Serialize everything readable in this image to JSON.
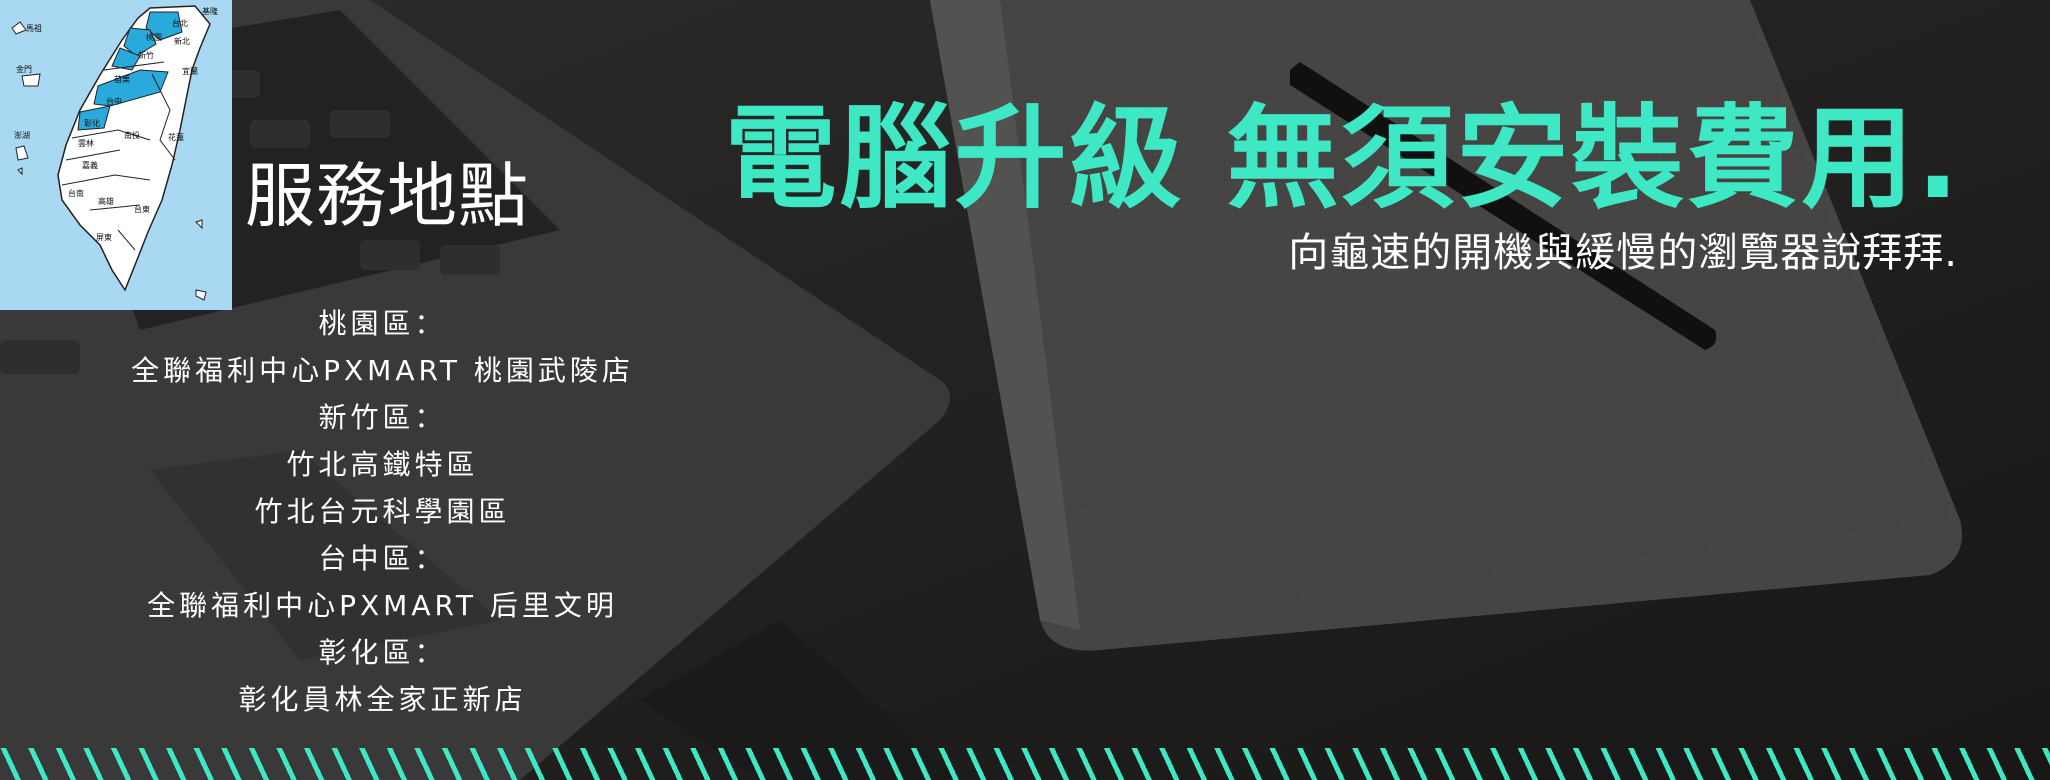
{
  "hero": {
    "headline": "電腦升級 無須安裝費用.",
    "subheadline": "向龜速的開機與緩慢的瀏覽器說拜拜."
  },
  "service_area": {
    "title": "服務地點",
    "lines": [
      "桃園區：",
      "全聯福利中心PXMART 桃園武陵店",
      "新竹區：",
      "竹北高鐵特區",
      "竹北台元科學園區",
      "台中區：",
      "全聯福利中心PXMART 后里文明",
      "彰化區：",
      "彰化員林全家正新店"
    ]
  },
  "map": {
    "labels": [
      "基隆",
      "台北",
      "桃園",
      "新北",
      "新竹",
      "宜蘭",
      "苗栗",
      "台中",
      "花蓮",
      "彰化",
      "南投",
      "雲林",
      "嘉義",
      "台南",
      "高雄",
      "台東",
      "屏東",
      "馬祖",
      "金門",
      "澎湖"
    ],
    "highlighted": [
      "桃園",
      "新竹",
      "台中",
      "彰化",
      "台北"
    ]
  },
  "colors": {
    "accent": "#3ee8c4",
    "highlight": "#2aa9dc",
    "map_sea": "#a9d8f2",
    "text": "#ffffff"
  },
  "icons": [
    "taiwan-map-icon",
    "laptop-image",
    "notebook-image",
    "pen-image",
    "stripe-pattern"
  ]
}
